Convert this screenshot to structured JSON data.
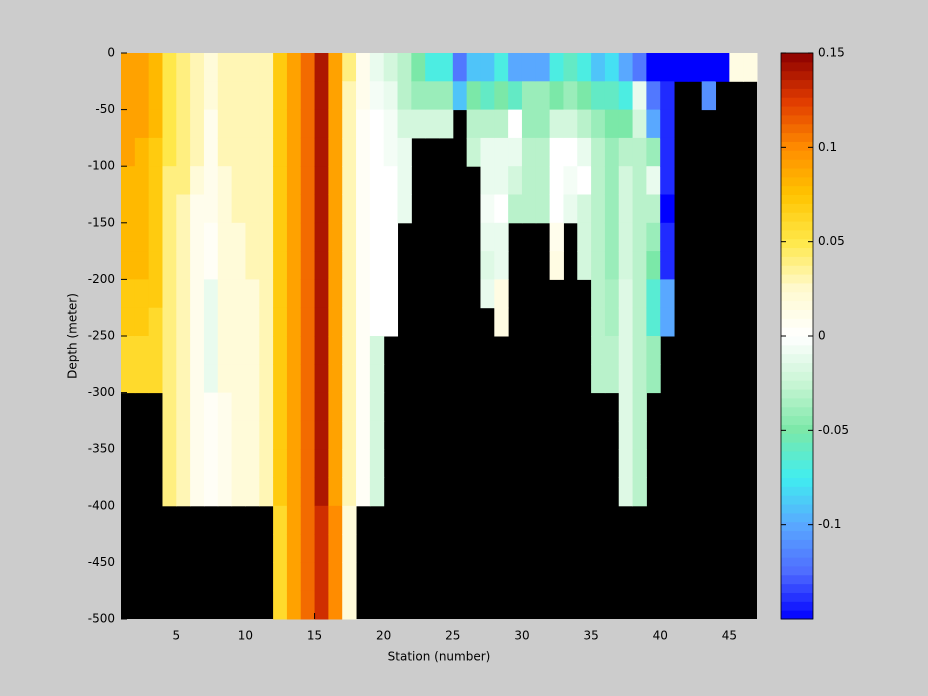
{
  "chart_data": {
    "type": "heatmap",
    "x_label": "Station (number)",
    "y_label": "Depth (meter)",
    "xlim": [
      1,
      47
    ],
    "xticks": [
      5,
      10,
      15,
      20,
      25,
      30,
      35,
      40,
      45
    ],
    "ylim": [
      -500,
      0
    ],
    "yticks": [
      0,
      -50,
      -100,
      -150,
      -200,
      -250,
      -300,
      -350,
      -400,
      -450,
      -500
    ],
    "x_edges": [
      1,
      2,
      3,
      4,
      5,
      6,
      7,
      8,
      9,
      10,
      11,
      12,
      13,
      14,
      15,
      16,
      17,
      18,
      19,
      20,
      21,
      22,
      23,
      24,
      25,
      26,
      27,
      28,
      29,
      30,
      31,
      32,
      33,
      34,
      35,
      36,
      37,
      38,
      39,
      40,
      41,
      42,
      43,
      44,
      45,
      46,
      47
    ],
    "y_edges": [
      0,
      -25,
      -50,
      -75,
      -100,
      -125,
      -150,
      -175,
      -200,
      -225,
      -250,
      -275,
      -300,
      -325,
      -350,
      -375,
      -400,
      -425,
      -450,
      -475,
      -500
    ],
    "missing_color": "#000000",
    "clim": [
      -0.15,
      0.15
    ],
    "cticks": [
      0.15,
      0.1,
      0.05,
      0,
      -0.05,
      -0.1
    ],
    "colormap": [
      "#0000ff",
      "#4f6cff",
      "#59a8ff",
      "#40eef0",
      "#7be8a8",
      "#c8f5d4",
      "#ffffff",
      "#fffad0",
      "#ffe84a",
      "#ffc400",
      "#ff8c00",
      "#e03a00",
      "#8b0000"
    ],
    "values": [
      [
        0.09,
        0.09,
        0.09,
        0.09,
        0.08,
        0.08,
        0.08,
        0.08,
        0.07,
        0.07,
        0.06,
        0.06,
        null,
        null,
        null,
        null,
        null,
        null,
        null,
        null
      ],
      [
        0.09,
        0.09,
        0.09,
        0.08,
        0.08,
        0.08,
        0.08,
        0.08,
        0.07,
        0.07,
        0.06,
        0.06,
        null,
        null,
        null,
        null,
        null,
        null,
        null,
        null
      ],
      [
        0.08,
        0.08,
        0.08,
        0.07,
        0.07,
        0.07,
        0.07,
        0.07,
        0.07,
        0.06,
        0.06,
        0.06,
        null,
        null,
        null,
        null,
        null,
        null,
        null,
        null
      ],
      [
        0.05,
        0.05,
        0.05,
        0.05,
        0.04,
        0.04,
        0.04,
        0.04,
        0.04,
        0.04,
        0.04,
        0.04,
        0.04,
        0.04,
        0.04,
        0.04,
        null,
        null,
        null,
        null
      ],
      [
        0.04,
        0.04,
        0.04,
        0.04,
        0.04,
        0.03,
        0.03,
        0.03,
        0.03,
        0.03,
        0.03,
        0.03,
        0.03,
        0.03,
        0.03,
        0.03,
        null,
        null,
        null,
        null
      ],
      [
        0.03,
        0.03,
        0.03,
        0.03,
        0.02,
        0.01,
        0.01,
        0.01,
        0.01,
        0.01,
        0.01,
        0.01,
        0.01,
        0.01,
        0.01,
        0.01,
        null,
        null,
        null,
        null
      ],
      [
        0.02,
        0.02,
        0.01,
        0.01,
        0.01,
        0.01,
        0.005,
        0.005,
        -0.01,
        -0.01,
        -0.01,
        -0.01,
        0.005,
        0.005,
        0.005,
        0.005,
        null,
        null,
        null,
        null
      ],
      [
        0.03,
        0.03,
        0.03,
        0.03,
        0.02,
        0.02,
        0.02,
        0.02,
        0.02,
        0.02,
        0.02,
        0.02,
        0.01,
        0.01,
        0.01,
        0.01,
        null,
        null,
        null,
        null
      ],
      [
        0.03,
        0.03,
        0.03,
        0.03,
        0.03,
        0.03,
        0.02,
        0.02,
        0.02,
        0.02,
        0.02,
        0.02,
        0.02,
        0.02,
        0.02,
        0.02,
        null,
        null,
        null,
        null
      ],
      [
        0.03,
        0.03,
        0.03,
        0.03,
        0.03,
        0.03,
        0.03,
        0.03,
        0.02,
        0.02,
        0.02,
        0.02,
        0.02,
        0.02,
        0.02,
        0.02,
        null,
        null,
        null,
        null
      ],
      [
        0.03,
        0.03,
        0.03,
        0.03,
        0.03,
        0.03,
        0.03,
        0.03,
        0.03,
        0.03,
        0.03,
        0.03,
        0.03,
        0.03,
        0.03,
        0.03,
        null,
        null,
        null,
        null
      ],
      [
        0.07,
        0.07,
        0.07,
        0.07,
        0.07,
        0.07,
        0.07,
        0.07,
        0.07,
        0.07,
        0.07,
        0.07,
        0.07,
        0.07,
        0.07,
        0.07,
        0.06,
        0.06,
        0.06,
        0.06
      ],
      [
        0.09,
        0.09,
        0.09,
        0.09,
        0.09,
        0.09,
        0.09,
        0.09,
        0.09,
        0.09,
        0.09,
        0.09,
        0.09,
        0.09,
        0.09,
        0.09,
        0.09,
        0.09,
        0.09,
        0.09
      ],
      [
        0.11,
        0.11,
        0.11,
        0.11,
        0.11,
        0.11,
        0.11,
        0.11,
        0.11,
        0.11,
        0.11,
        0.11,
        0.11,
        0.11,
        0.11,
        0.11,
        0.11,
        0.11,
        0.11,
        0.11
      ],
      [
        0.14,
        0.14,
        0.14,
        0.14,
        0.14,
        0.14,
        0.14,
        0.14,
        0.14,
        0.14,
        0.14,
        0.14,
        0.14,
        0.14,
        0.14,
        0.14,
        0.13,
        0.13,
        0.13,
        0.13
      ],
      [
        0.09,
        0.09,
        0.09,
        0.09,
        0.09,
        0.09,
        0.09,
        0.09,
        0.09,
        0.09,
        0.09,
        0.09,
        0.09,
        0.09,
        0.09,
        0.09,
        0.1,
        0.1,
        0.1,
        0.1
      ],
      [
        0.04,
        0.03,
        0.03,
        0.03,
        0.03,
        0.03,
        0.03,
        0.03,
        0.03,
        0.03,
        0.03,
        0.03,
        0.03,
        0.03,
        0.03,
        0.03,
        0.02,
        0.02,
        0.02,
        0.02
      ],
      [
        0.01,
        0.01,
        0.005,
        0.005,
        0.005,
        0.005,
        0.005,
        0.005,
        0.005,
        0.005,
        0.005,
        0.005,
        0.005,
        0.005,
        0.005,
        0.005,
        null,
        null,
        null,
        null
      ],
      [
        -0.01,
        -0.005,
        0,
        0,
        0,
        0,
        0,
        0,
        0,
        0,
        -0.02,
        -0.02,
        -0.02,
        -0.02,
        -0.02,
        -0.02,
        null,
        null,
        null,
        null
      ],
      [
        -0.02,
        -0.01,
        -0.005,
        -0.005,
        0,
        0,
        0,
        0,
        0,
        0,
        null,
        null,
        null,
        null,
        null,
        null,
        null,
        null,
        null,
        null
      ],
      [
        -0.03,
        -0.03,
        -0.02,
        -0.01,
        -0.01,
        -0.01,
        null,
        null,
        null,
        null,
        null,
        null,
        null,
        null,
        null,
        null,
        null,
        null,
        null,
        null
      ],
      [
        -0.05,
        -0.04,
        -0.02,
        null,
        null,
        null,
        null,
        null,
        null,
        null,
        null,
        null,
        null,
        null,
        null,
        null,
        null,
        null,
        null,
        null
      ],
      [
        -0.07,
        -0.04,
        -0.02,
        null,
        null,
        null,
        null,
        null,
        null,
        null,
        null,
        null,
        null,
        null,
        null,
        null,
        null,
        null,
        null,
        null
      ],
      [
        -0.07,
        -0.04,
        -0.02,
        null,
        null,
        null,
        null,
        null,
        null,
        null,
        null,
        null,
        null,
        null,
        null,
        null,
        null,
        null,
        null,
        null
      ],
      [
        -0.12,
        -0.09,
        null,
        null,
        null,
        null,
        null,
        null,
        null,
        null,
        null,
        null,
        null,
        null,
        null,
        null,
        null,
        null,
        null,
        null
      ],
      [
        -0.09,
        -0.05,
        -0.03,
        -0.025,
        null,
        null,
        null,
        null,
        null,
        null,
        null,
        null,
        null,
        null,
        null,
        null,
        null,
        null,
        null,
        null
      ],
      [
        -0.09,
        -0.06,
        -0.03,
        -0.01,
        -0.01,
        -0.005,
        -0.01,
        -0.015,
        -0.01,
        null,
        null,
        null,
        null,
        null,
        null,
        null,
        null,
        null,
        null,
        null
      ],
      [
        -0.07,
        -0.05,
        -0.03,
        -0.01,
        -0.01,
        0,
        -0.01,
        -0.01,
        0.015,
        0.015,
        null,
        null,
        null,
        null,
        null,
        null,
        null,
        null,
        null,
        null
      ],
      [
        -0.1,
        -0.06,
        0,
        -0.01,
        -0.02,
        -0.03,
        null,
        null,
        null,
        null,
        null,
        null,
        null,
        null,
        null,
        null,
        null,
        null,
        null,
        null
      ],
      [
        -0.1,
        -0.04,
        -0.04,
        -0.03,
        -0.03,
        -0.03,
        null,
        null,
        null,
        null,
        null,
        null,
        null,
        null,
        null,
        null,
        null,
        null,
        null,
        null
      ],
      [
        -0.1,
        -0.04,
        -0.04,
        -0.03,
        -0.03,
        -0.03,
        null,
        null,
        null,
        null,
        null,
        null,
        null,
        null,
        null,
        null,
        null,
        null,
        null,
        null
      ],
      [
        -0.07,
        -0.05,
        -0.02,
        0,
        0,
        0,
        0.01,
        0.015,
        null,
        null,
        null,
        null,
        null,
        null,
        null,
        null,
        null,
        null,
        null,
        null
      ],
      [
        -0.06,
        -0.04,
        -0.02,
        0,
        -0.005,
        -0.01,
        null,
        null,
        null,
        null,
        null,
        null,
        null,
        null,
        null,
        null,
        null,
        null,
        null,
        null
      ],
      [
        -0.07,
        -0.05,
        -0.03,
        -0.01,
        0,
        -0.02,
        -0.02,
        -0.02,
        null,
        null,
        null,
        null,
        null,
        null,
        null,
        null,
        null,
        null,
        null,
        null
      ],
      [
        -0.09,
        -0.06,
        -0.04,
        -0.03,
        -0.03,
        -0.03,
        -0.03,
        -0.03,
        -0.03,
        -0.03,
        -0.03,
        -0.03,
        null,
        null,
        null,
        null,
        null,
        null,
        null,
        null
      ],
      [
        -0.08,
        -0.06,
        -0.05,
        -0.04,
        -0.04,
        -0.04,
        -0.04,
        -0.04,
        -0.035,
        -0.035,
        -0.03,
        -0.03,
        null,
        null,
        null,
        null,
        null,
        null,
        null,
        null
      ],
      [
        -0.1,
        -0.07,
        -0.05,
        -0.03,
        -0.02,
        -0.02,
        -0.02,
        -0.02,
        -0.015,
        -0.015,
        -0.015,
        -0.015,
        -0.015,
        -0.015,
        -0.015,
        -0.015,
        null,
        null,
        null,
        null
      ],
      [
        -0.12,
        -0.01,
        -0.02,
        -0.03,
        -0.03,
        -0.03,
        -0.03,
        -0.03,
        -0.03,
        -0.03,
        -0.03,
        -0.03,
        -0.03,
        -0.03,
        -0.03,
        -0.03,
        null,
        null,
        null,
        null
      ],
      [
        -0.15,
        -0.12,
        -0.1,
        -0.04,
        -0.01,
        -0.03,
        -0.04,
        -0.05,
        -0.065,
        -0.065,
        -0.04,
        -0.04,
        null,
        null,
        null,
        null,
        null,
        null,
        null,
        null
      ],
      [
        -0.15,
        -0.14,
        -0.14,
        -0.14,
        -0.14,
        -0.15,
        -0.14,
        -0.14,
        -0.1,
        -0.1,
        null,
        null,
        null,
        null,
        null,
        null,
        null,
        null,
        null,
        null
      ],
      [
        -0.15,
        null,
        null,
        null,
        null,
        null,
        null,
        null,
        null,
        null,
        null,
        null,
        null,
        null,
        null,
        null,
        null,
        null,
        null,
        null
      ],
      [
        -0.15,
        null,
        null,
        null,
        null,
        null,
        null,
        null,
        null,
        null,
        null,
        null,
        null,
        null,
        null,
        null,
        null,
        null,
        null,
        null
      ],
      [
        -0.15,
        -0.11,
        null,
        null,
        null,
        null,
        null,
        null,
        null,
        null,
        null,
        null,
        null,
        null,
        null,
        null,
        null,
        null,
        null,
        null
      ],
      [
        -0.15,
        null,
        null,
        null,
        null,
        null,
        null,
        null,
        null,
        null,
        null,
        null,
        null,
        null,
        null,
        null,
        null,
        null,
        null,
        null
      ],
      [
        0.015,
        null,
        null,
        null,
        null,
        null,
        null,
        null,
        null,
        null,
        null,
        null,
        null,
        null,
        null,
        null,
        null,
        null,
        null,
        null
      ],
      [
        0.015,
        null,
        null,
        null,
        null,
        null,
        null,
        null,
        null,
        null,
        null,
        null,
        null,
        null,
        null,
        null,
        null,
        null,
        null,
        null
      ]
    ]
  }
}
